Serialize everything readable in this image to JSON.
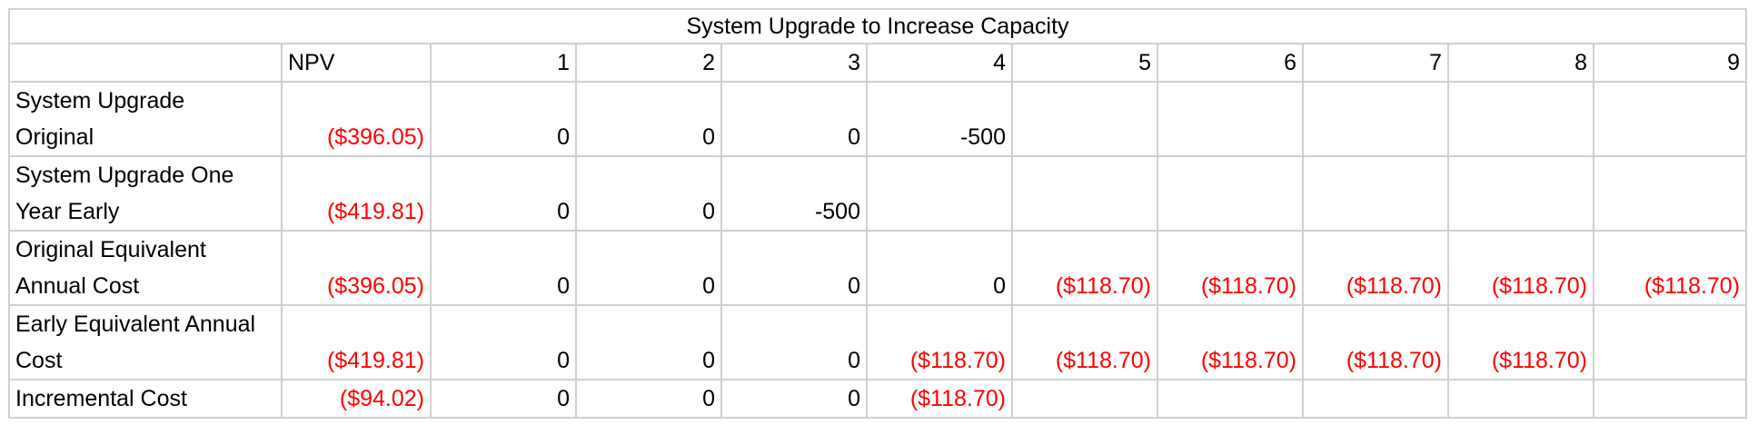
{
  "title": "System Upgrade to Increase Capacity",
  "header": {
    "npv": "NPV",
    "years": [
      "1",
      "2",
      "3",
      "4",
      "5",
      "6",
      "7",
      "8",
      "9"
    ]
  },
  "rows": [
    {
      "label_line1": "System Upgrade",
      "label_line2": "Original",
      "npv": "($396.05)",
      "values": [
        "0",
        "0",
        "0",
        "-500",
        "",
        "",
        "",
        "",
        ""
      ],
      "negative": [
        false,
        false,
        false,
        false,
        false,
        false,
        false,
        false,
        false
      ]
    },
    {
      "label_line1": "System Upgrade One",
      "label_line2": "Year Early",
      "npv": "($419.81)",
      "values": [
        "0",
        "0",
        "-500",
        "",
        "",
        "",
        "",
        "",
        ""
      ],
      "negative": [
        false,
        false,
        false,
        false,
        false,
        false,
        false,
        false,
        false
      ]
    },
    {
      "label_line1": "Original Equivalent",
      "label_line2": "Annual Cost",
      "npv": "($396.05)",
      "values": [
        "0",
        "0",
        "0",
        "0",
        "($118.70)",
        "($118.70)",
        "($118.70)",
        "($118.70)",
        "($118.70)"
      ],
      "negative": [
        false,
        false,
        false,
        false,
        true,
        true,
        true,
        true,
        true
      ]
    },
    {
      "label_line1": "Early Equivalent Annual",
      "label_line2": "Cost",
      "npv": "($419.81)",
      "values": [
        "0",
        "0",
        "0",
        "($118.70)",
        "($118.70)",
        "($118.70)",
        "($118.70)",
        "($118.70)",
        ""
      ],
      "negative": [
        false,
        false,
        false,
        true,
        true,
        true,
        true,
        true,
        false
      ]
    },
    {
      "label_line1": "Incremental Cost",
      "label_line2": "",
      "npv": "($94.02)",
      "values": [
        "0",
        "0",
        "0",
        "($118.70)",
        "",
        "",
        "",
        "",
        ""
      ],
      "negative": [
        false,
        false,
        false,
        true,
        false,
        false,
        false,
        false,
        false
      ]
    }
  ],
  "colors": {
    "negative": "#ff0000",
    "grid": "#d0d0d0"
  }
}
